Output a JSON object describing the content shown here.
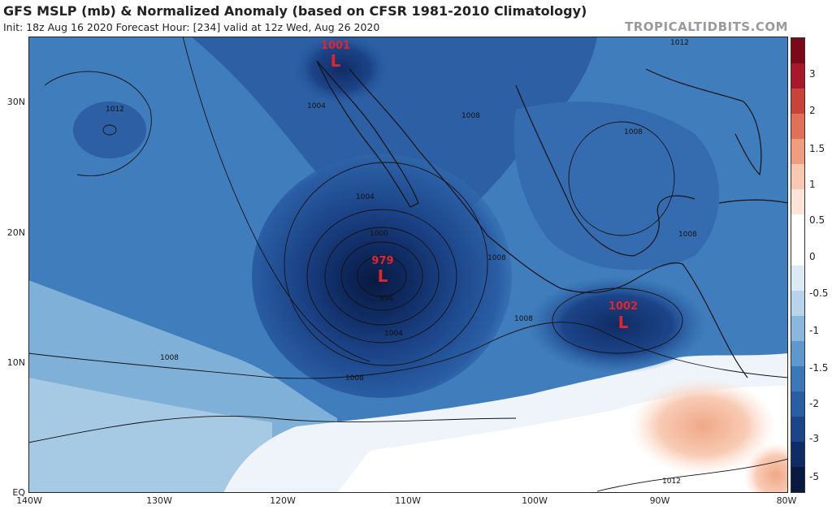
{
  "header": {
    "title": "GFS MSLP (mb) & Normalized Anomaly (based on CFSR 1981-2010 Climatology)",
    "subtitle": "Init: 18z Aug 16 2020   Forecast Hour: [234]   valid at 12z Wed, Aug 26 2020",
    "credit": "TROPICALTIDBITS.COM"
  },
  "axes": {
    "lat_labels": [
      "30N",
      "20N",
      "10N",
      "EQ"
    ],
    "lon_labels": [
      "140W",
      "130W",
      "120W",
      "110W",
      "100W",
      "90W",
      "80W"
    ]
  },
  "lows": [
    {
      "value": "1001",
      "symbol": "L"
    },
    {
      "value": "979",
      "symbol": "L"
    },
    {
      "value": "1002",
      "symbol": "L"
    }
  ],
  "isobar_labels": [
    "1012",
    "1004",
    "1008",
    "1004",
    "1000",
    "996",
    "1004",
    "1008",
    "1008",
    "1008",
    "1008",
    "1008",
    "1008",
    "1012",
    "1012"
  ],
  "colorbar": {
    "labels": [
      "3",
      "2",
      "1.5",
      "1",
      "0.5",
      "0",
      "-0.5",
      "-1",
      "-1.5",
      "-2",
      "-3",
      "-5"
    ],
    "colors": [
      "#7a0a1a",
      "#a8182a",
      "#c8443a",
      "#e07058",
      "#f09c80",
      "#f8c8b0",
      "#fce4d8",
      "#ffffff",
      "#ffffff",
      "#dceaf4",
      "#b8d4ea",
      "#8ab8dc",
      "#5e98cc",
      "#3a78b8",
      "#2a5ea4",
      "#1c4488",
      "#102c64",
      "#081a40"
    ]
  }
}
